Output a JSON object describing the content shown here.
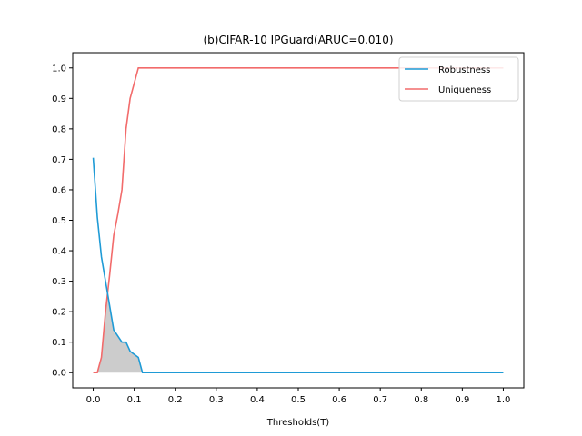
{
  "chart_data": {
    "type": "line",
    "title": "(b)CIFAR-10 IPGuard(ARUC=0.010)",
    "xlabel": "Thresholds(T)",
    "ylabel": "",
    "xlim": [
      -0.05,
      1.05
    ],
    "ylim": [
      -0.05,
      1.05
    ],
    "xticks": [
      "0.0",
      "0.1",
      "0.2",
      "0.3",
      "0.4",
      "0.5",
      "0.6",
      "0.7",
      "0.8",
      "0.9",
      "1.0"
    ],
    "yticks": [
      "0.0",
      "0.1",
      "0.2",
      "0.3",
      "0.4",
      "0.5",
      "0.6",
      "0.7",
      "0.8",
      "0.9",
      "1.0"
    ],
    "legend_position": "top-right",
    "grid": false,
    "fill_between": {
      "color": "#cccccc",
      "description_source": "area under min(Robustness, Uniqueness)"
    },
    "series": [
      {
        "name": "Robustness",
        "color": "#1f9bd6",
        "x": [
          0.0,
          0.01,
          0.02,
          0.03,
          0.04,
          0.05,
          0.06,
          0.07,
          0.08,
          0.09,
          0.1,
          0.11,
          0.12,
          0.13,
          0.2,
          0.3,
          0.4,
          0.5,
          0.6,
          0.7,
          0.8,
          0.9,
          1.0
        ],
        "y": [
          0.705,
          0.51,
          0.38,
          0.3,
          0.22,
          0.14,
          0.12,
          0.1,
          0.1,
          0.07,
          0.06,
          0.05,
          0.0,
          0.0,
          0.0,
          0.0,
          0.0,
          0.0,
          0.0,
          0.0,
          0.0,
          0.0,
          0.0
        ]
      },
      {
        "name": "Uniqueness",
        "color": "#f26b6b",
        "x": [
          0.0,
          0.01,
          0.02,
          0.03,
          0.04,
          0.05,
          0.06,
          0.07,
          0.08,
          0.09,
          0.1,
          0.11,
          0.12,
          0.2,
          0.3,
          0.4,
          0.5,
          0.6,
          0.7,
          0.8,
          0.9,
          1.0
        ],
        "y": [
          0.0,
          0.0,
          0.05,
          0.2,
          0.32,
          0.45,
          0.52,
          0.6,
          0.8,
          0.9,
          0.95,
          1.0,
          1.0,
          1.0,
          1.0,
          1.0,
          1.0,
          1.0,
          1.0,
          1.0,
          1.0,
          1.0
        ]
      }
    ]
  }
}
